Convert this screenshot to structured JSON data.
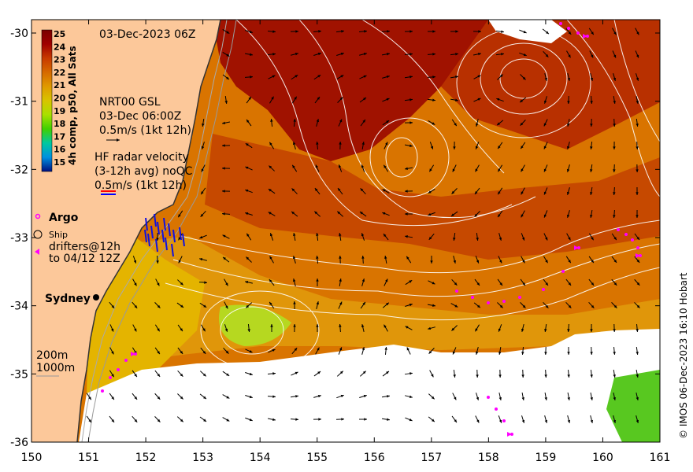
{
  "map": {
    "title": "03-Dec-2023 06Z",
    "colorbar": {
      "label": "4h comp, p50, All Sats",
      "ticks": [
        "25",
        "24",
        "23",
        "22",
        "21",
        "20",
        "19",
        "18",
        "17",
        "16",
        "15"
      ],
      "colors": [
        "#7a0000",
        "#a00000",
        "#c83a00",
        "#d66a00",
        "#e09a00",
        "#d8c400",
        "#a8e000",
        "#40d000",
        "#00c8a0",
        "#0090e0",
        "#0040c0",
        "#001080"
      ]
    },
    "gsl_legend": {
      "line1": "NRT00 GSL",
      "line2": "03-Dec 06:00Z",
      "line3": "0.5m/s (1kt 12h)"
    },
    "radar_legend": {
      "line1": "HF radar velocity",
      "line2": "(3-12h avg) noQC",
      "line3": "0.5m/s (1kt 12h)"
    },
    "argo_label": "Argo",
    "ship_label": "Ship",
    "drifters_line1": "drifters@12h",
    "drifters_line2": "to 04/12 12Z",
    "city_label": "Sydney",
    "depth_200": "200m",
    "depth_1000": "1000m",
    "x_ticks": [
      "150",
      "151",
      "152",
      "153",
      "154",
      "155",
      "156",
      "157",
      "158",
      "159",
      "160",
      "161"
    ],
    "y_ticks": [
      "-30",
      "-31",
      "-32",
      "-33",
      "-34",
      "-35",
      "-36"
    ],
    "credit": "© IMOS 06-Dec-2023 16:10 Hobart",
    "colors": {
      "land": "#fcc89a",
      "sst_hot": "#a01000",
      "sst_warm": "#c85000",
      "sst_mid": "#e08a00",
      "sst_cool": "#d8b800",
      "sst_green": "#9ae020",
      "cloud": "#ffffff",
      "drifter": "#ff00ff",
      "radar": "#0000ff"
    }
  }
}
